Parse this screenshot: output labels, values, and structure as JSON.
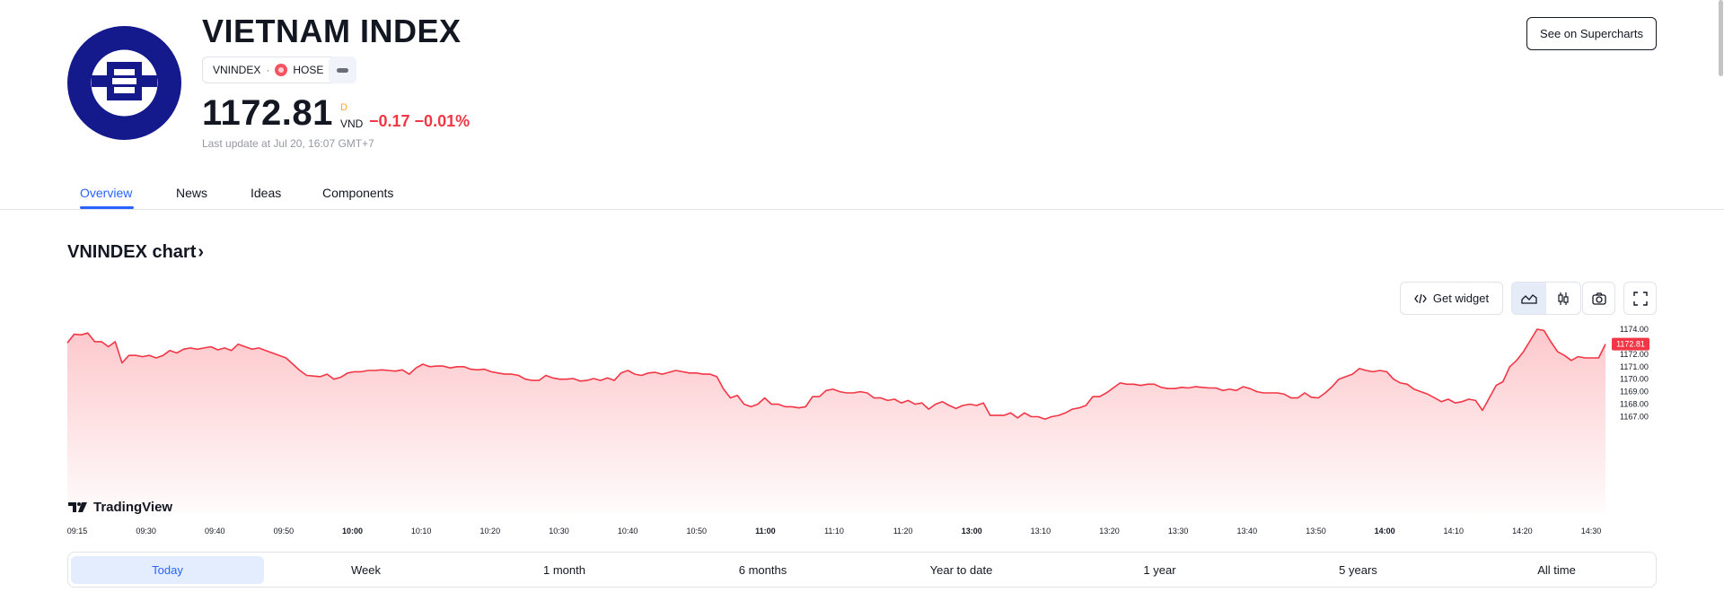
{
  "header": {
    "title": "VIETNAM INDEX",
    "symbol": "VNINDEX",
    "separator": "·",
    "exchange": "HOSE",
    "price": "1172.81",
    "price_flag": "D",
    "currency": "VND",
    "change": "−0.17 −0.01%",
    "last_update": "Last update at Jul 20, 16:07 GMT+7",
    "supercharts_button": "See on Supercharts"
  },
  "tabs": [
    "Overview",
    "News",
    "Ideas",
    "Components"
  ],
  "section": {
    "title": "VNINDEX chart",
    "chevron": "›"
  },
  "toolbar": {
    "get_widget": "Get widget",
    "icons": [
      "code-icon",
      "area-chart-icon",
      "candles-icon",
      "camera-icon",
      "fullscreen-icon"
    ]
  },
  "brand": "TradingView",
  "ranges": [
    "Today",
    "Week",
    "1 month",
    "6 months",
    "Year to date",
    "1 year",
    "5 years",
    "All time"
  ],
  "colors": {
    "accent": "#2962ff",
    "line": "#f23645",
    "fill": "#f7525f",
    "logo": "#141a8c"
  },
  "chart_data": {
    "type": "area",
    "ylim": [
      1166.8,
      1174.3
    ],
    "y_ticks": [
      "1174.00",
      "1173.00",
      "1172.00",
      "1171.00",
      "1170.00",
      "1169.00",
      "1168.00",
      "1167.00"
    ],
    "x_ticks": [
      "09:15",
      "09:30",
      "09:40",
      "09:50",
      "10:00",
      "10:10",
      "10:20",
      "10:30",
      "10:40",
      "10:50",
      "11:00",
      "11:10",
      "11:20",
      "13:00",
      "13:10",
      "13:20",
      "13:30",
      "13:40",
      "13:50",
      "14:00",
      "14:10",
      "14:20",
      "14:30"
    ],
    "bold_ticks": [
      "10:00",
      "11:00",
      "13:00",
      "14:00"
    ],
    "last_value_label": "1172.81",
    "series": [
      {
        "values": [
          1172.9,
          1173.6,
          1173.55,
          1173.7,
          1173.0,
          1173.0,
          1172.6,
          1173.0,
          1171.3,
          1171.9,
          1171.9,
          1171.8,
          1171.9,
          1171.7,
          1171.9,
          1172.3,
          1172.1,
          1172.4,
          1172.5,
          1172.4,
          1172.5,
          1172.6,
          1172.35,
          1172.5,
          1172.3,
          1172.8,
          1172.6,
          1172.4,
          1172.5,
          1172.3,
          1172.1,
          1171.9,
          1171.7,
          1171.2,
          1170.7,
          1170.3,
          1170.25,
          1170.2,
          1170.4,
          1170.0,
          1170.15,
          1170.5,
          1170.6,
          1170.6,
          1170.7,
          1170.7,
          1170.75,
          1170.7,
          1170.65,
          1170.75,
          1170.4,
          1170.9,
          1171.2,
          1171.0,
          1171.05,
          1171.05,
          1170.9,
          1171.0,
          1171.0,
          1170.8,
          1170.75,
          1170.8,
          1170.6,
          1170.5,
          1170.4,
          1170.4,
          1170.3,
          1170.0,
          1169.9,
          1169.9,
          1170.3,
          1170.1,
          1170.0,
          1170.0,
          1170.05,
          1169.85,
          1169.9,
          1170.05,
          1169.9,
          1170.1,
          1169.9,
          1170.5,
          1170.7,
          1170.4,
          1170.3,
          1170.5,
          1170.55,
          1170.4,
          1170.55,
          1170.7,
          1170.6,
          1170.5,
          1170.5,
          1170.4,
          1170.4,
          1170.2,
          1169.2,
          1168.5,
          1168.7,
          1168.0,
          1167.8,
          1168.0,
          1168.5,
          1168.0,
          1168.0,
          1167.8,
          1167.8,
          1167.7,
          1167.8,
          1168.6,
          1168.6,
          1169.1,
          1169.2,
          1169.0,
          1168.9,
          1168.9,
          1169.0,
          1168.9,
          1168.5,
          1168.5,
          1168.3,
          1168.4,
          1168.1,
          1168.3,
          1168.0,
          1168.1,
          1167.6,
          1168.0,
          1168.2,
          1167.9,
          1167.65,
          1167.9,
          1168.0,
          1167.9,
          1168.1,
          1167.1,
          1167.1,
          1167.1,
          1167.3,
          1166.9,
          1167.3,
          1167.0,
          1167.0,
          1166.8,
          1167.0,
          1167.1,
          1167.3,
          1167.6,
          1167.7,
          1167.9,
          1168.6,
          1168.6,
          1168.9,
          1169.3,
          1169.7,
          1169.6,
          1169.6,
          1169.5,
          1169.6,
          1169.6,
          1169.35,
          1169.25,
          1169.25,
          1169.35,
          1169.3,
          1169.4,
          1169.35,
          1169.3,
          1169.3,
          1169.1,
          1169.2,
          1169.1,
          1169.4,
          1169.25,
          1169.0,
          1168.9,
          1168.9,
          1168.9,
          1168.8,
          1168.5,
          1168.5,
          1168.9,
          1168.55,
          1168.5,
          1168.9,
          1169.4,
          1170.0,
          1170.2,
          1170.4,
          1170.85,
          1170.7,
          1170.6,
          1170.7,
          1170.6,
          1170.0,
          1169.7,
          1169.6,
          1169.2,
          1169.0,
          1168.8,
          1168.5,
          1168.2,
          1168.4,
          1168.1,
          1168.2,
          1168.4,
          1168.3,
          1167.5,
          1168.5,
          1169.5,
          1169.8,
          1171.0,
          1171.5,
          1172.2,
          1173.1,
          1174.0,
          1173.9,
          1173.0,
          1172.2,
          1171.9,
          1171.5,
          1171.8,
          1171.7,
          1171.7,
          1171.7,
          1172.81
        ]
      }
    ]
  }
}
